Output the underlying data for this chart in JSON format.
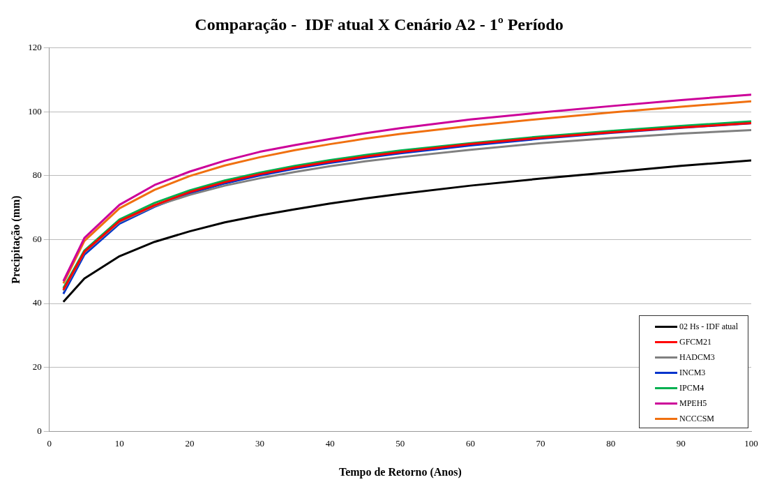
{
  "chart_data": {
    "type": "line",
    "title": "Comparação -  IDF atual X Cenário A2 - 1º Período",
    "xlabel": "Tempo de Retorno (Anos)",
    "ylabel": "Precipitação (mm)",
    "x": [
      2,
      5,
      10,
      15,
      20,
      25,
      30,
      35,
      40,
      45,
      50,
      60,
      70,
      80,
      90,
      100
    ],
    "series": [
      {
        "name": "02 Hs - IDF atual",
        "color": "#000000",
        "values": [
          40.5,
          47.8,
          54.8,
          59.3,
          62.6,
          65.4,
          67.6,
          69.5,
          71.3,
          72.9,
          74.3,
          76.9,
          79.1,
          81.1,
          83.1,
          84.8
        ]
      },
      {
        "name": "GFCM21",
        "color": "#ff0000",
        "values": [
          44.3,
          56.2,
          65.8,
          70.8,
          74.9,
          78,
          80.5,
          82.6,
          84.4,
          86,
          87.4,
          89.9,
          91.9,
          93.6,
          95.1,
          96.5
        ]
      },
      {
        "name": "HADCM3",
        "color": "#808080",
        "values": [
          44,
          56,
          65.5,
          70.5,
          74,
          76.9,
          79.2,
          81.2,
          83,
          84.5,
          85.8,
          88.1,
          90.2,
          91.8,
          93.2,
          94.3
        ]
      },
      {
        "name": "INCM3",
        "color": "#0033cc",
        "values": [
          43,
          55.3,
          65,
          70.3,
          74.5,
          77.6,
          80.1,
          82.2,
          84,
          85.6,
          87,
          89.5,
          91.6,
          93.4,
          95,
          96.4
        ]
      },
      {
        "name": "IPCM4",
        "color": "#00b050",
        "values": [
          44.8,
          56.6,
          66.3,
          71.5,
          75.4,
          78.5,
          81,
          83.1,
          84.9,
          86.5,
          87.9,
          90.2,
          92.3,
          94,
          95.6,
          97
        ]
      },
      {
        "name": "MPEH5",
        "color": "#cc0099",
        "values": [
          47,
          60.5,
          70.9,
          77.1,
          81.3,
          84.7,
          87.5,
          89.6,
          91.5,
          93.3,
          94.9,
          97.6,
          99.8,
          101.8,
          103.7,
          105.4
        ]
      },
      {
        "name": "NCCCSM",
        "color": "#f07010",
        "values": [
          46.3,
          59.6,
          69.8,
          75.6,
          79.9,
          83.2,
          85.8,
          88,
          89.9,
          91.6,
          93.1,
          95.6,
          97.8,
          99.8,
          101.6,
          103.3
        ]
      }
    ],
    "xlim": [
      0,
      100
    ],
    "xticks": [
      0,
      10,
      20,
      30,
      40,
      50,
      60,
      70,
      80,
      90,
      100
    ],
    "ylim": [
      0,
      120
    ],
    "yticks": [
      0,
      20,
      40,
      60,
      80,
      100,
      120
    ],
    "grid": "y",
    "legend": "bottom right",
    "marker": "none",
    "line_style": "solid"
  }
}
